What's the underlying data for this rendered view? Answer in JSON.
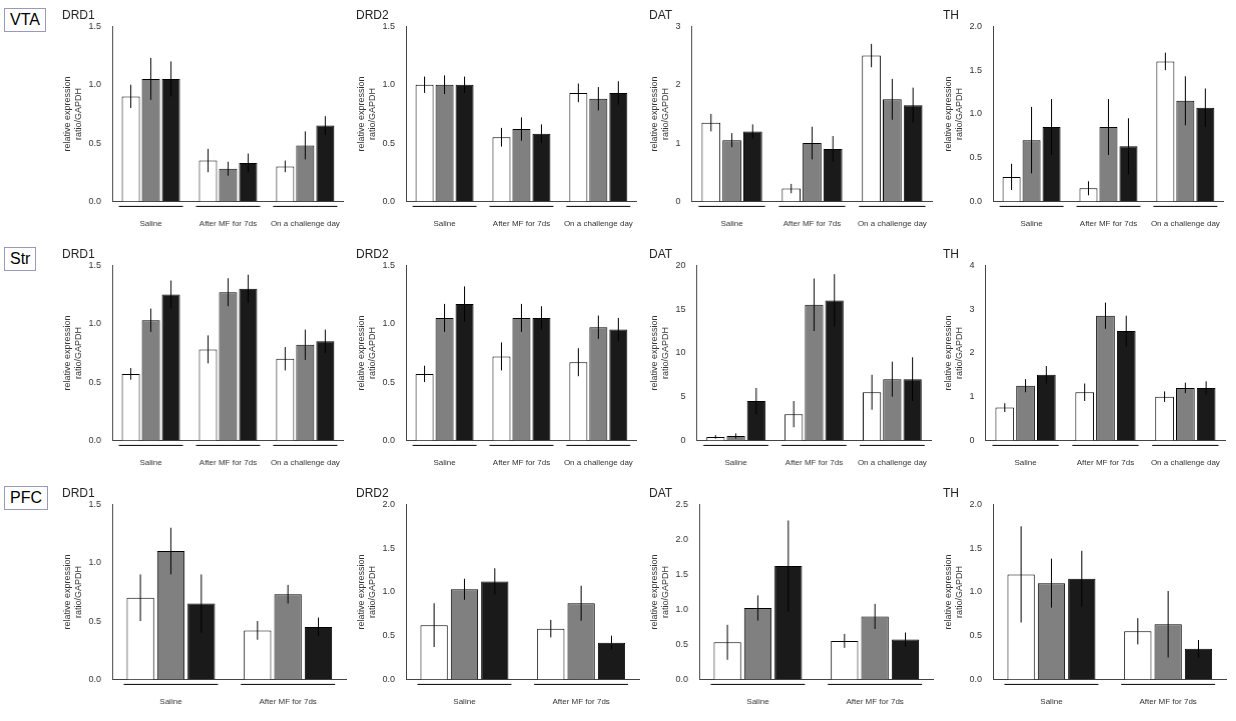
{
  "chart_data": [
    {
      "type": "bar",
      "title": "DRD1",
      "ylabel": "relative expression\nratio/GAPDH",
      "annotation": "VTA",
      "categories": [
        "Saline",
        "After MF for 7ds",
        "On a challenge day"
      ],
      "series": [
        {
          "color": "white",
          "values": [
            0.9,
            0.35,
            0.3
          ],
          "errors": [
            0.1,
            0.1,
            0.05
          ]
        },
        {
          "color": "#808080",
          "values": [
            1.05,
            0.28,
            0.48
          ],
          "errors": [
            0.18,
            0.06,
            0.12
          ]
        },
        {
          "color": "#1a1a1a",
          "values": [
            1.05,
            0.33,
            0.65
          ],
          "errors": [
            0.15,
            0.08,
            0.08
          ]
        }
      ],
      "ylim": [
        0,
        1.5
      ],
      "yticks": [
        {
          "value": 0,
          "label": "0.0"
        },
        0.5,
        {
          "value": 1,
          "label": "1.0"
        },
        1.5
      ],
      "grid": false
    },
    {
      "type": "bar",
      "title": "DRD2",
      "ylabel": "relative expression\nratio/GAPDH",
      "categories": [
        "Saline",
        "After MF for 7ds",
        "On a challenge day"
      ],
      "series": [
        {
          "color": "white",
          "values": [
            1.0,
            0.55,
            0.93
          ],
          "errors": [
            0.07,
            0.08,
            0.08
          ]
        },
        {
          "color": "#808080",
          "values": [
            1.0,
            0.62,
            0.88
          ],
          "errors": [
            0.08,
            0.1,
            0.1
          ]
        },
        {
          "color": "#1a1a1a",
          "values": [
            1.0,
            0.58,
            0.93
          ],
          "errors": [
            0.07,
            0.08,
            0.1
          ]
        }
      ],
      "ylim": [
        0,
        1.5
      ],
      "yticks": [
        {
          "value": 0,
          "label": "0.0"
        },
        0.5,
        {
          "value": 1,
          "label": "1.0"
        },
        1.5
      ],
      "grid": false
    },
    {
      "type": "bar",
      "title": "DAT",
      "ylabel": "relative expression\nratio/GAPDH",
      "categories": [
        "Saline",
        "After MF for 7ds",
        "On a challenge day"
      ],
      "series": [
        {
          "color": "white",
          "values": [
            1.35,
            0.22,
            2.5
          ],
          "errors": [
            0.15,
            0.08,
            0.2
          ]
        },
        {
          "color": "#808080",
          "values": [
            1.05,
            1.0,
            1.75
          ],
          "errors": [
            0.12,
            0.28,
            0.35
          ]
        },
        {
          "color": "#1a1a1a",
          "values": [
            1.2,
            0.9,
            1.65
          ],
          "errors": [
            0.12,
            0.22,
            0.3
          ]
        }
      ],
      "ylim": [
        0,
        3
      ],
      "yticks": [
        0,
        1,
        2,
        3
      ],
      "grid": false
    },
    {
      "type": "bar",
      "title": "TH",
      "ylabel": "relative expression\nratio/GAPDH",
      "categories": [
        "Saline",
        "After MF for 7ds",
        "On a challenge day"
      ],
      "series": [
        {
          "color": "white",
          "values": [
            0.28,
            0.15,
            1.6
          ],
          "errors": [
            0.15,
            0.08,
            0.1
          ]
        },
        {
          "color": "#808080",
          "values": [
            0.7,
            0.85,
            1.15
          ],
          "errors": [
            0.38,
            0.32,
            0.28
          ]
        },
        {
          "color": "#1a1a1a",
          "values": [
            0.85,
            0.63,
            1.07
          ],
          "errors": [
            0.32,
            0.32,
            0.22
          ]
        }
      ],
      "ylim": [
        0,
        2.0
      ],
      "yticks": [
        {
          "value": 0,
          "label": "0.0"
        },
        0.5,
        {
          "value": 1,
          "label": "1.0"
        },
        1.5,
        {
          "value": 2,
          "label": "2.0"
        }
      ],
      "grid": false
    },
    {
      "type": "bar",
      "title": "DRD1",
      "ylabel": "relative expression\nratio/GAPDH",
      "annotation": "Str",
      "categories": [
        "Saline",
        "After MF for 7ds",
        "On a challenge day"
      ],
      "series": [
        {
          "color": "white",
          "values": [
            0.57,
            0.78,
            0.7
          ],
          "errors": [
            0.05,
            0.12,
            0.1
          ]
        },
        {
          "color": "#808080",
          "values": [
            1.03,
            1.27,
            0.82
          ],
          "errors": [
            0.1,
            0.12,
            0.13
          ]
        },
        {
          "color": "#1a1a1a",
          "values": [
            1.25,
            1.3,
            0.85
          ],
          "errors": [
            0.12,
            0.12,
            0.1
          ]
        }
      ],
      "ylim": [
        0,
        1.5
      ],
      "yticks": [
        {
          "value": 0,
          "label": "0.0"
        },
        0.5,
        {
          "value": 1,
          "label": "1.0"
        },
        1.5
      ],
      "grid": false
    },
    {
      "type": "bar",
      "title": "DRD2",
      "ylabel": "relative expression\nratio/GAPDH",
      "categories": [
        "Saline",
        "After MF for 7ds",
        "On a challenge day"
      ],
      "series": [
        {
          "color": "white",
          "values": [
            0.57,
            0.72,
            0.67
          ],
          "errors": [
            0.07,
            0.12,
            0.12
          ]
        },
        {
          "color": "#808080",
          "values": [
            1.05,
            1.05,
            0.97
          ],
          "errors": [
            0.12,
            0.12,
            0.1
          ]
        },
        {
          "color": "#1a1a1a",
          "values": [
            1.17,
            1.05,
            0.95
          ],
          "errors": [
            0.15,
            0.1,
            0.1
          ]
        }
      ],
      "ylim": [
        0,
        1.5
      ],
      "yticks": [
        {
          "value": 0,
          "label": "0.0"
        },
        0.5,
        {
          "value": 1,
          "label": "1.0"
        },
        1.5
      ],
      "grid": false
    },
    {
      "type": "bar",
      "title": "DAT",
      "ylabel": "relative expression\nratio/GAPDH",
      "categories": [
        "Saline",
        "After MF for 7ds",
        "On a challenge day"
      ],
      "series": [
        {
          "color": "white",
          "values": [
            0.4,
            3.0,
            5.5
          ],
          "errors": [
            0.2,
            1.5,
            2.0
          ]
        },
        {
          "color": "#808080",
          "values": [
            0.5,
            15.5,
            7.0
          ],
          "errors": [
            0.3,
            3.0,
            2.0
          ]
        },
        {
          "color": "#1a1a1a",
          "values": [
            4.5,
            16.0,
            7.0
          ],
          "errors": [
            1.5,
            3.0,
            2.5
          ]
        }
      ],
      "ylim": [
        0,
        20
      ],
      "yticks": [
        0,
        5,
        10,
        15,
        20
      ],
      "grid": false
    },
    {
      "type": "bar",
      "title": "TH",
      "ylabel": "relative expression\nratio/GAPDH",
      "categories": [
        "Saline",
        "After MF for 7ds",
        "On a challenge day"
      ],
      "series": [
        {
          "color": "white",
          "values": [
            0.75,
            1.1,
            1.0
          ],
          "errors": [
            0.1,
            0.2,
            0.12
          ]
        },
        {
          "color": "#808080",
          "values": [
            1.25,
            2.85,
            1.2
          ],
          "errors": [
            0.15,
            0.3,
            0.12
          ]
        },
        {
          "color": "#1a1a1a",
          "values": [
            1.5,
            2.5,
            1.2
          ],
          "errors": [
            0.2,
            0.35,
            0.15
          ]
        }
      ],
      "ylim": [
        0,
        4
      ],
      "yticks": [
        0,
        1,
        2,
        3,
        4
      ],
      "grid": false
    },
    {
      "type": "bar",
      "title": "DRD1",
      "ylabel": "relative expression\nratio/GAPDH",
      "annotation": "PFC",
      "categories": [
        "Saline",
        "After MF for 7ds"
      ],
      "series": [
        {
          "color": "white",
          "values": [
            0.7,
            0.42
          ],
          "errors": [
            0.2,
            0.08
          ]
        },
        {
          "color": "#808080",
          "values": [
            1.1,
            0.73
          ],
          "errors": [
            0.2,
            0.08
          ]
        },
        {
          "color": "#1a1a1a",
          "values": [
            0.65,
            0.45
          ],
          "errors": [
            0.25,
            0.08
          ]
        }
      ],
      "ylim": [
        0,
        1.5
      ],
      "yticks": [
        {
          "value": 0,
          "label": "0.0"
        },
        0.5,
        {
          "value": 1,
          "label": "1.0"
        },
        1.5
      ],
      "grid": false
    },
    {
      "type": "bar",
      "title": "DRD2",
      "ylabel": "relative expression\nratio/GAPDH",
      "categories": [
        "Saline",
        "After MF for 7ds"
      ],
      "series": [
        {
          "color": "white",
          "values": [
            0.62,
            0.58
          ],
          "errors": [
            0.25,
            0.1
          ]
        },
        {
          "color": "#808080",
          "values": [
            1.03,
            0.87
          ],
          "errors": [
            0.12,
            0.2
          ]
        },
        {
          "color": "#1a1a1a",
          "values": [
            1.12,
            0.42
          ],
          "errors": [
            0.15,
            0.08
          ]
        }
      ],
      "ylim": [
        0,
        2.0
      ],
      "yticks": [
        {
          "value": 0,
          "label": "0.0"
        },
        0.5,
        {
          "value": 1,
          "label": "1.0"
        },
        1.5,
        {
          "value": 2,
          "label": "2.0"
        }
      ],
      "grid": false
    },
    {
      "type": "bar",
      "title": "DAT",
      "ylabel": "relative expression\nratio/GAPDH",
      "categories": [
        "Saline",
        "After MF for 7ds"
      ],
      "series": [
        {
          "color": "white",
          "values": [
            0.53,
            0.55
          ],
          "errors": [
            0.25,
            0.1
          ]
        },
        {
          "color": "#808080",
          "values": [
            1.02,
            0.9
          ],
          "errors": [
            0.18,
            0.18
          ]
        },
        {
          "color": "#1a1a1a",
          "values": [
            1.62,
            0.57
          ],
          "errors": [
            0.65,
            0.1
          ]
        }
      ],
      "ylim": [
        0,
        2.5
      ],
      "yticks": [
        {
          "value": 0,
          "label": "0.0"
        },
        0.5,
        {
          "value": 1,
          "label": "1.0"
        },
        1.5,
        {
          "value": 2,
          "label": "2.0"
        },
        2.5
      ],
      "grid": false
    },
    {
      "type": "bar",
      "title": "TH",
      "ylabel": "relative expression\nratio/GAPDH",
      "categories": [
        "Saline",
        "After MF for 7ds"
      ],
      "series": [
        {
          "color": "white",
          "values": [
            1.2,
            0.55
          ],
          "errors": [
            0.55,
            0.15
          ]
        },
        {
          "color": "#808080",
          "values": [
            1.1,
            0.63
          ],
          "errors": [
            0.28,
            0.38
          ]
        },
        {
          "color": "#1a1a1a",
          "values": [
            1.15,
            0.35
          ],
          "errors": [
            0.32,
            0.1
          ]
        }
      ],
      "ylim": [
        0,
        2.0
      ],
      "yticks": [
        {
          "value": 0,
          "label": "0.0"
        },
        0.5,
        {
          "value": 1,
          "label": "1.0"
        },
        1.5,
        {
          "value": 2,
          "label": "2.0"
        }
      ],
      "grid": false
    }
  ]
}
